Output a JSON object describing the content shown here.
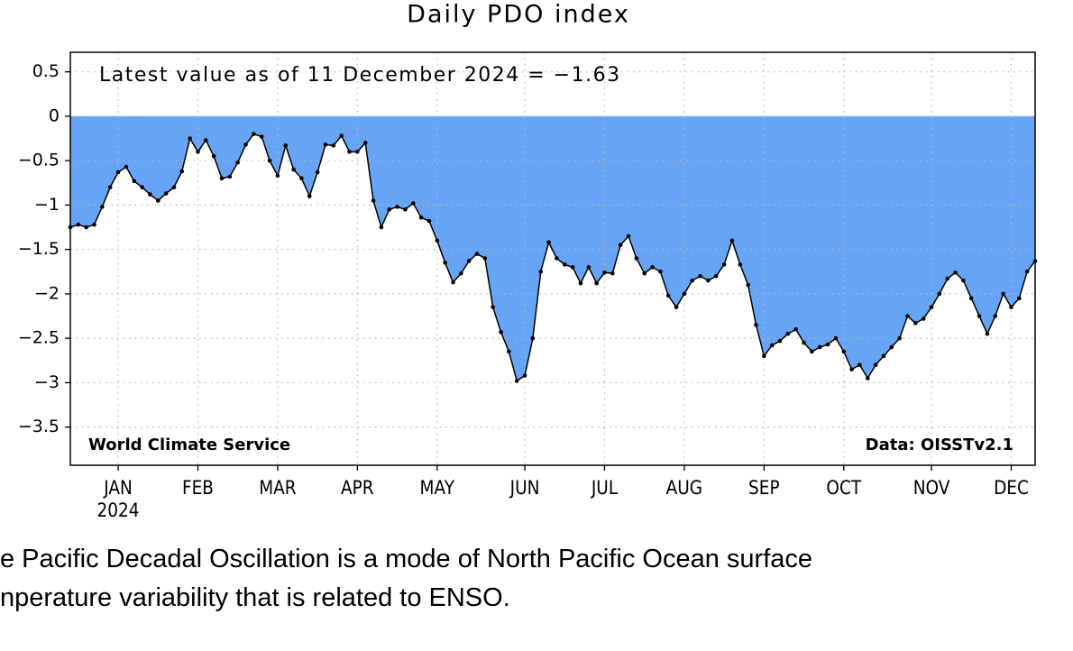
{
  "chart_data": {
    "type": "area",
    "title": "Daily PDO index",
    "annotations": [
      "Latest value as of 11 December 2024 = −1.63",
      "World Climate Service",
      "Data: OISSTv2.1"
    ],
    "year_label": "2024",
    "categories": [
      null,
      null,
      null,
      null,
      null,
      null,
      "JAN",
      null,
      null,
      null,
      null,
      null,
      null,
      null,
      null,
      null,
      "FEB",
      null,
      null,
      null,
      null,
      null,
      null,
      null,
      null,
      null,
      "MAR",
      null,
      null,
      null,
      null,
      null,
      null,
      null,
      null,
      null,
      "APR",
      null,
      null,
      null,
      null,
      null,
      null,
      null,
      null,
      null,
      "MAY",
      null,
      null,
      null,
      null,
      null,
      null,
      null,
      null,
      null,
      null,
      "JUN",
      null,
      null,
      null,
      null,
      null,
      null,
      null,
      null,
      null,
      "JUL",
      null,
      null,
      null,
      null,
      null,
      null,
      null,
      null,
      null,
      "AUG",
      null,
      null,
      null,
      null,
      null,
      null,
      null,
      null,
      null,
      "SEP",
      null,
      null,
      null,
      null,
      null,
      null,
      null,
      null,
      null,
      "OCT",
      null,
      null,
      null,
      null,
      null,
      null,
      null,
      null,
      null,
      null,
      "NOV",
      null,
      null,
      null,
      null,
      null,
      null,
      null,
      null,
      null,
      "DEC",
      null,
      null,
      null
    ],
    "values": [
      -1.25,
      -1.22,
      -1.25,
      -1.22,
      -1.02,
      -0.8,
      -0.63,
      -0.57,
      -0.73,
      -0.8,
      -0.88,
      -0.95,
      -0.87,
      -0.8,
      -0.62,
      -0.25,
      -0.4,
      -0.27,
      -0.45,
      -0.7,
      -0.68,
      -0.52,
      -0.32,
      -0.2,
      -0.23,
      -0.5,
      -0.67,
      -0.33,
      -0.6,
      -0.7,
      -0.9,
      -0.63,
      -0.32,
      -0.33,
      -0.22,
      -0.4,
      -0.4,
      -0.3,
      -0.95,
      -1.25,
      -1.05,
      -1.02,
      -1.05,
      -0.98,
      -1.14,
      -1.18,
      -1.4,
      -1.65,
      -1.87,
      -1.77,
      -1.63,
      -1.55,
      -1.6,
      -2.15,
      -2.43,
      -2.65,
      -2.98,
      -2.92,
      -2.5,
      -1.75,
      -1.42,
      -1.6,
      -1.67,
      -1.7,
      -1.88,
      -1.7,
      -1.88,
      -1.76,
      -1.77,
      -1.45,
      -1.35,
      -1.6,
      -1.77,
      -1.7,
      -1.75,
      -2.02,
      -2.15,
      -2.0,
      -1.85,
      -1.8,
      -1.85,
      -1.8,
      -1.67,
      -1.4,
      -1.67,
      -1.9,
      -2.35,
      -2.7,
      -2.58,
      -2.53,
      -2.45,
      -2.4,
      -2.55,
      -2.65,
      -2.6,
      -2.57,
      -2.5,
      -2.65,
      -2.85,
      -2.8,
      -2.95,
      -2.8,
      -2.7,
      -2.6,
      -2.5,
      -2.25,
      -2.33,
      -2.28,
      -2.15,
      -2.0,
      -1.83,
      -1.76,
      -1.85,
      -2.05,
      -2.25,
      -2.45,
      -2.25,
      -2.0,
      -2.15,
      -2.05,
      -1.75,
      -1.63
    ],
    "color": "#66a5f6",
    "line_color": "#000000",
    "ylim": [
      -3.93,
      0.72
    ],
    "yticks": [
      0.5,
      0,
      {
        "value": -0.5,
        "label": "−0.5"
      },
      {
        "value": -1,
        "label": "−1"
      },
      {
        "value": -1.5,
        "label": "−1.5"
      },
      {
        "value": -2,
        "label": "−2"
      },
      {
        "value": -2.5,
        "label": "−2.5"
      },
      {
        "value": -3,
        "label": "−3"
      },
      {
        "value": -3.5,
        "label": "−3.5"
      }
    ],
    "grid": true
  },
  "caption": [
    "e Pacific Decadal Oscillation is a mode of North Pacific Ocean surface",
    "nperature variability that is related to ENSO."
  ]
}
